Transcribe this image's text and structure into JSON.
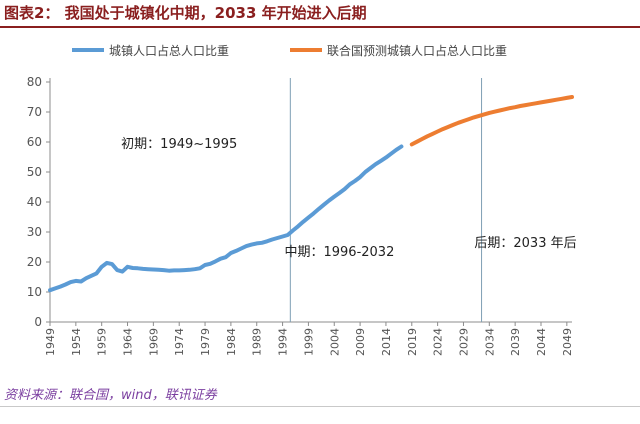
{
  "header": {
    "title": "图表2： 我国处于城镇化中期，2033 年开始进入后期"
  },
  "source": "资料来源：联合国，wind，联讯证券",
  "chart_data": {
    "type": "line",
    "title": "图表2： 我国处于城镇化中期，2033 年开始进入后期",
    "xlabel": "",
    "ylabel": "",
    "xlim": [
      1949,
      2050
    ],
    "ylim": [
      0,
      80
    ],
    "yticks": [
      0,
      10,
      20,
      30,
      40,
      50,
      60,
      70,
      80
    ],
    "xticks": [
      1949,
      1954,
      1959,
      1964,
      1969,
      1974,
      1979,
      1984,
      1989,
      1994,
      1999,
      2004,
      2009,
      2014,
      2019,
      2024,
      2029,
      2034,
      2039,
      2044,
      2049
    ],
    "grid": false,
    "legend": "top",
    "series": [
      {
        "name": "城镇人口占总人口比重",
        "color": "#5b9bd5",
        "x": [
          1949,
          1950,
          1951,
          1952,
          1953,
          1954,
          1955,
          1956,
          1957,
          1958,
          1959,
          1960,
          1961,
          1962,
          1963,
          1964,
          1965,
          1966,
          1967,
          1968,
          1969,
          1970,
          1971,
          1972,
          1973,
          1974,
          1975,
          1976,
          1977,
          1978,
          1979,
          1980,
          1981,
          1982,
          1983,
          1984,
          1985,
          1986,
          1987,
          1988,
          1989,
          1990,
          1991,
          1992,
          1993,
          1994,
          1995,
          1996,
          1997,
          1998,
          1999,
          2000,
          2001,
          2002,
          2003,
          2004,
          2005,
          2006,
          2007,
          2008,
          2009,
          2010,
          2011,
          2012,
          2013,
          2014,
          2015,
          2016,
          2017
        ],
        "values": [
          10.6,
          11.2,
          11.8,
          12.5,
          13.3,
          13.7,
          13.5,
          14.6,
          15.4,
          16.2,
          18.4,
          19.7,
          19.3,
          17.3,
          16.8,
          18.4,
          18.0,
          17.9,
          17.7,
          17.6,
          17.5,
          17.4,
          17.3,
          17.1,
          17.2,
          17.2,
          17.3,
          17.4,
          17.6,
          17.9,
          19.0,
          19.4,
          20.2,
          21.1,
          21.6,
          23.0,
          23.7,
          24.5,
          25.3,
          25.8,
          26.2,
          26.4,
          26.9,
          27.5,
          28.0,
          28.5,
          29.0,
          30.5,
          31.9,
          33.4,
          34.8,
          36.2,
          37.7,
          39.1,
          40.5,
          41.8,
          43.0,
          44.3,
          45.9,
          47.0,
          48.3,
          50.0,
          51.3,
          52.6,
          53.7,
          54.8,
          56.1,
          57.4,
          58.5
        ]
      },
      {
        "name": "联合国预测城镇人口占总人口比重",
        "color": "#ed7d31",
        "x": [
          2019,
          2020,
          2021,
          2022,
          2023,
          2024,
          2025,
          2026,
          2027,
          2028,
          2029,
          2030,
          2031,
          2032,
          2033,
          2034,
          2035,
          2036,
          2037,
          2038,
          2039,
          2040,
          2041,
          2042,
          2043,
          2044,
          2045,
          2046,
          2047,
          2048,
          2049,
          2050
        ],
        "values": [
          59.2,
          60.1,
          61.0,
          61.9,
          62.7,
          63.5,
          64.3,
          65.0,
          65.7,
          66.4,
          67.0,
          67.6,
          68.2,
          68.7,
          69.2,
          69.7,
          70.1,
          70.5,
          70.9,
          71.3,
          71.6,
          72.0,
          72.3,
          72.6,
          72.9,
          73.2,
          73.5,
          73.8,
          74.1,
          74.4,
          74.7,
          75.0
        ]
      }
    ],
    "vlines": [
      1995.5,
      2032.5
    ],
    "annotations": [
      {
        "text": "初期：1949~1995",
        "x": 1974,
        "y": 58
      },
      {
        "text": "中期：1996-2032",
        "x": 2005,
        "y": 22
      },
      {
        "text": "后期：2033 年后",
        "x": 2041,
        "y": 25
      }
    ]
  }
}
